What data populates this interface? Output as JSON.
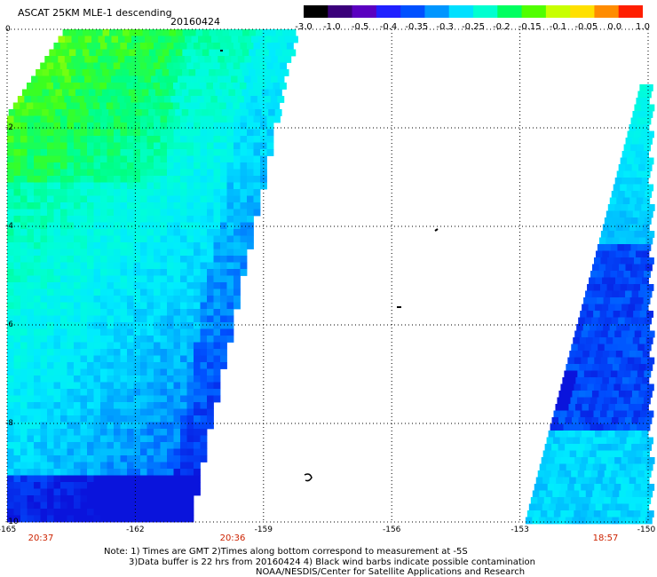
{
  "header": {
    "title": "ASCAT 25KM MLE-1 descending",
    "date": "20160424"
  },
  "colorbar": {
    "labels": [
      "-3.0",
      "-1.0",
      "-0.5",
      "-0.4",
      "-0.35",
      "-0.3",
      "-0.25",
      "-0.2",
      "-0.15",
      "-0.1",
      "-0.05",
      "0.0",
      "1.0"
    ],
    "colors": [
      "#000000",
      "#3a007a",
      "#5a00c0",
      "#2020ff",
      "#0050ff",
      "#0096ff",
      "#00e0ff",
      "#00ffd0",
      "#00ff60",
      "#50ff00",
      "#c8ff00",
      "#ffe000",
      "#ff8c00",
      "#ff1e00"
    ]
  },
  "axes": {
    "y_labels": [
      "0",
      "-2",
      "-4",
      "-6",
      "-8",
      "-10"
    ],
    "x_labels": [
      "-165",
      "-162",
      "-159",
      "-156",
      "-153",
      "-150"
    ],
    "time_labels": [
      "20:37",
      "20:36",
      "18:57"
    ]
  },
  "notes": {
    "line1": "Note: 1) Times are GMT 2)Times along bottom correspond to measurement at -5S",
    "line2": "3)Data buffer is 22 hrs from 20160424 4) Black wind barbs indicate possible contamination",
    "line3": "NOAA/NESDIS/Center for Satellite Applications and Research"
  },
  "map_data": {
    "lat_range": [
      0,
      -10
    ],
    "lon_range": [
      -165,
      -150
    ],
    "swaths": [
      {
        "name": "left-swath",
        "top_lon_range": [
          -163.7,
          -158.3
        ],
        "bottom_lon_range": [
          -165,
          -160.8
        ]
      },
      {
        "name": "right-swath",
        "top_lon_range": [
          -150.2,
          -150
        ],
        "bottom_lon_range": [
          -152.9,
          -150
        ]
      }
    ]
  }
}
